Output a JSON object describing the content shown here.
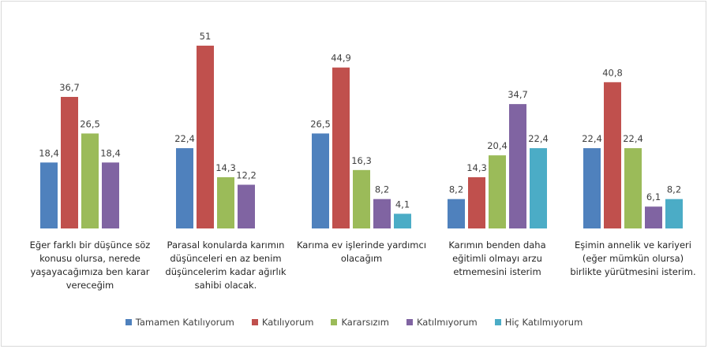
{
  "chart_data": {
    "type": "bar",
    "categories": [
      "Eğer farklı bir düşünce söz konusu olursa, nerede yaşayacağımıza ben karar vereceğim",
      "Parasal konularda karımın düşünceleri en az benim düşüncelerim kadar ağırlık sahibi olacak.",
      "Karıma ev işlerinde yardımcı olacağım",
      "Karımın benden daha eğitimli olmayı arzu etmemesini isterim",
      "Eşimin annelik ve kariyeri (eğer mümkün olursa) birlikte yürütmesini isterim."
    ],
    "series": [
      {
        "name": "Tamamen Katılıyorum",
        "color": "#4f81bd",
        "values": [
          18.4,
          22.4,
          26.5,
          8.2,
          22.4
        ],
        "value_labels": [
          "18,4",
          "22,4",
          "26,5",
          "8,2",
          "22,4"
        ]
      },
      {
        "name": "Katılıyorum",
        "color": "#c0504d",
        "values": [
          36.7,
          51,
          44.9,
          14.3,
          40.8
        ],
        "value_labels": [
          "36,7",
          "51",
          "44,9",
          "14,3",
          "40,8"
        ]
      },
      {
        "name": "Kararsızım",
        "color": "#9bbb59",
        "values": [
          26.5,
          14.3,
          16.3,
          20.4,
          22.4
        ],
        "value_labels": [
          "26,5",
          "14,3",
          "16,3",
          "20,4",
          "22,4"
        ]
      },
      {
        "name": "Katılmıyorum",
        "color": "#8064a2",
        "values": [
          18.4,
          12.2,
          8.2,
          34.7,
          6.1
        ],
        "value_labels": [
          "18,4",
          "12,2",
          "8,2",
          "34,7",
          "6,1"
        ]
      },
      {
        "name": "Hiç Katılmıyorum",
        "color": "#4bacc6",
        "values": [
          null,
          null,
          4.1,
          22.4,
          8.2
        ],
        "value_labels": [
          null,
          null,
          "4,1",
          "22,4",
          "8,2"
        ]
      }
    ],
    "legend": "bottom"
  }
}
